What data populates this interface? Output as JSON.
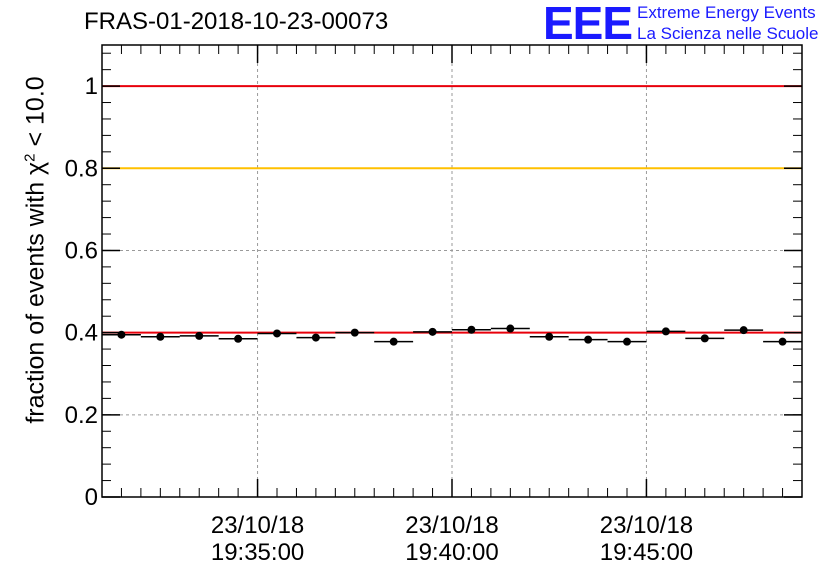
{
  "header": {
    "run_id": "FRAS-01-2018-10-23-00073",
    "logo_mark": "EEE",
    "logo_line_1": "Extreme Energy Events",
    "logo_line_2": "La Scienza nelle Scuole"
  },
  "y_axis_label": {
    "prefix": "fraction of events with χ",
    "superscript": "2",
    "suffix": " < 10.0"
  },
  "colors": {
    "reference_line": "#e8000b",
    "threshold_line": "#ffc000",
    "mean_line": "#e8000b",
    "points": "#000000",
    "grid": "#9a9a9a"
  },
  "chart_data": {
    "type": "scatter",
    "title": "FRAS-01-2018-10-23-00073",
    "ylabel": "fraction of events with χ² < 10.0",
    "xlabel": "",
    "xlim": [
      0,
      18
    ],
    "ylim": [
      0,
      1.1
    ],
    "y_ticks": [
      0,
      0.2,
      0.4,
      0.6,
      0.8,
      1
    ],
    "y_tick_labels": [
      "0",
      "0.2",
      "0.4",
      "0.6",
      "0.8",
      "1"
    ],
    "x_ticks": [
      {
        "x": 4,
        "date": "23/10/18",
        "time": "19:35:00"
      },
      {
        "x": 9,
        "date": "23/10/18",
        "time": "19:40:00"
      },
      {
        "x": 14,
        "date": "23/10/18",
        "time": "19:45:00"
      }
    ],
    "grid": true,
    "horizontal_lines": [
      {
        "name": "reference",
        "y": 1.0,
        "color": "#e8000b"
      },
      {
        "name": "threshold",
        "y": 0.8,
        "color": "#ffc000"
      },
      {
        "name": "mean",
        "y": 0.4,
        "color": "#e8000b"
      }
    ],
    "bin_width": 1,
    "x": [
      0.5,
      1.5,
      2.5,
      3.5,
      4.5,
      5.5,
      6.5,
      7.5,
      8.5,
      9.5,
      10.5,
      11.5,
      12.5,
      13.5,
      14.5,
      15.5,
      16.5,
      17.5
    ],
    "values": [
      0.395,
      0.39,
      0.392,
      0.385,
      0.398,
      0.388,
      0.4,
      0.378,
      0.402,
      0.407,
      0.41,
      0.39,
      0.383,
      0.378,
      0.403,
      0.386,
      0.406,
      0.378
    ],
    "errors": [
      0.006,
      0.006,
      0.006,
      0.006,
      0.006,
      0.006,
      0.006,
      0.006,
      0.006,
      0.006,
      0.006,
      0.006,
      0.006,
      0.006,
      0.006,
      0.006,
      0.006,
      0.006
    ]
  }
}
